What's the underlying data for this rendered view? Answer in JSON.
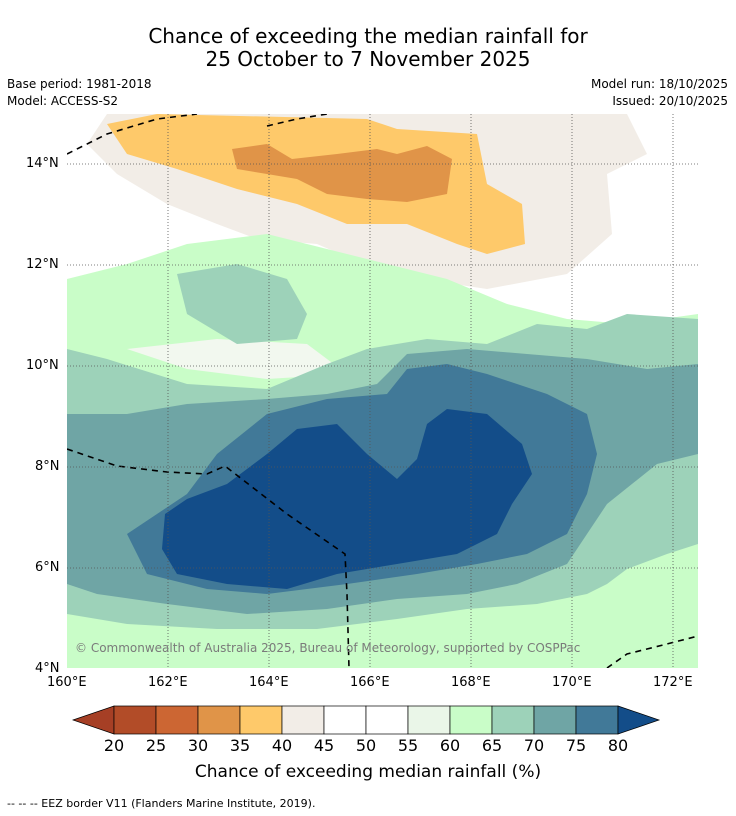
{
  "title": {
    "line1": "Chance of exceeding the median rainfall for",
    "line2": "25 October to 7 November 2025"
  },
  "meta": {
    "base_period": "Base period: 1981-2018",
    "model": "Model: ACCESS-S2",
    "model_run": "Model run: 18/10/2025",
    "issued": "Issued: 20/10/2025"
  },
  "map": {
    "lat_labels": [
      "14°N",
      "12°N",
      "10°N",
      "8°N",
      "6°N",
      "4°N"
    ],
    "lon_labels": [
      "160°E",
      "162°E",
      "164°E",
      "166°E",
      "168°E",
      "170°E",
      "172°E"
    ],
    "copyright": "© Commonwealth of Australia 2025, Bureau of Meteorology, supported by COSPPac"
  },
  "colorbar": {
    "ticks": [
      "20",
      "25",
      "30",
      "35",
      "40",
      "45",
      "50",
      "55",
      "60",
      "65",
      "70",
      "75",
      "80"
    ],
    "colors": [
      "#a63f25",
      "#b24c28",
      "#cc6633",
      "#e09448",
      "#fec96a",
      "#f2ede7",
      "#ffffff",
      "#ffffff",
      "#eaf6e8",
      "#c9fdc8",
      "#9dd2b9",
      "#6fa5a5",
      "#417998",
      "#134d89"
    ],
    "label": "Chance of exceeding median rainfall (%)"
  },
  "footer": {
    "eez": "--  --  -- EEZ border V11 (Flanders Marine Institute, 2019)."
  }
}
